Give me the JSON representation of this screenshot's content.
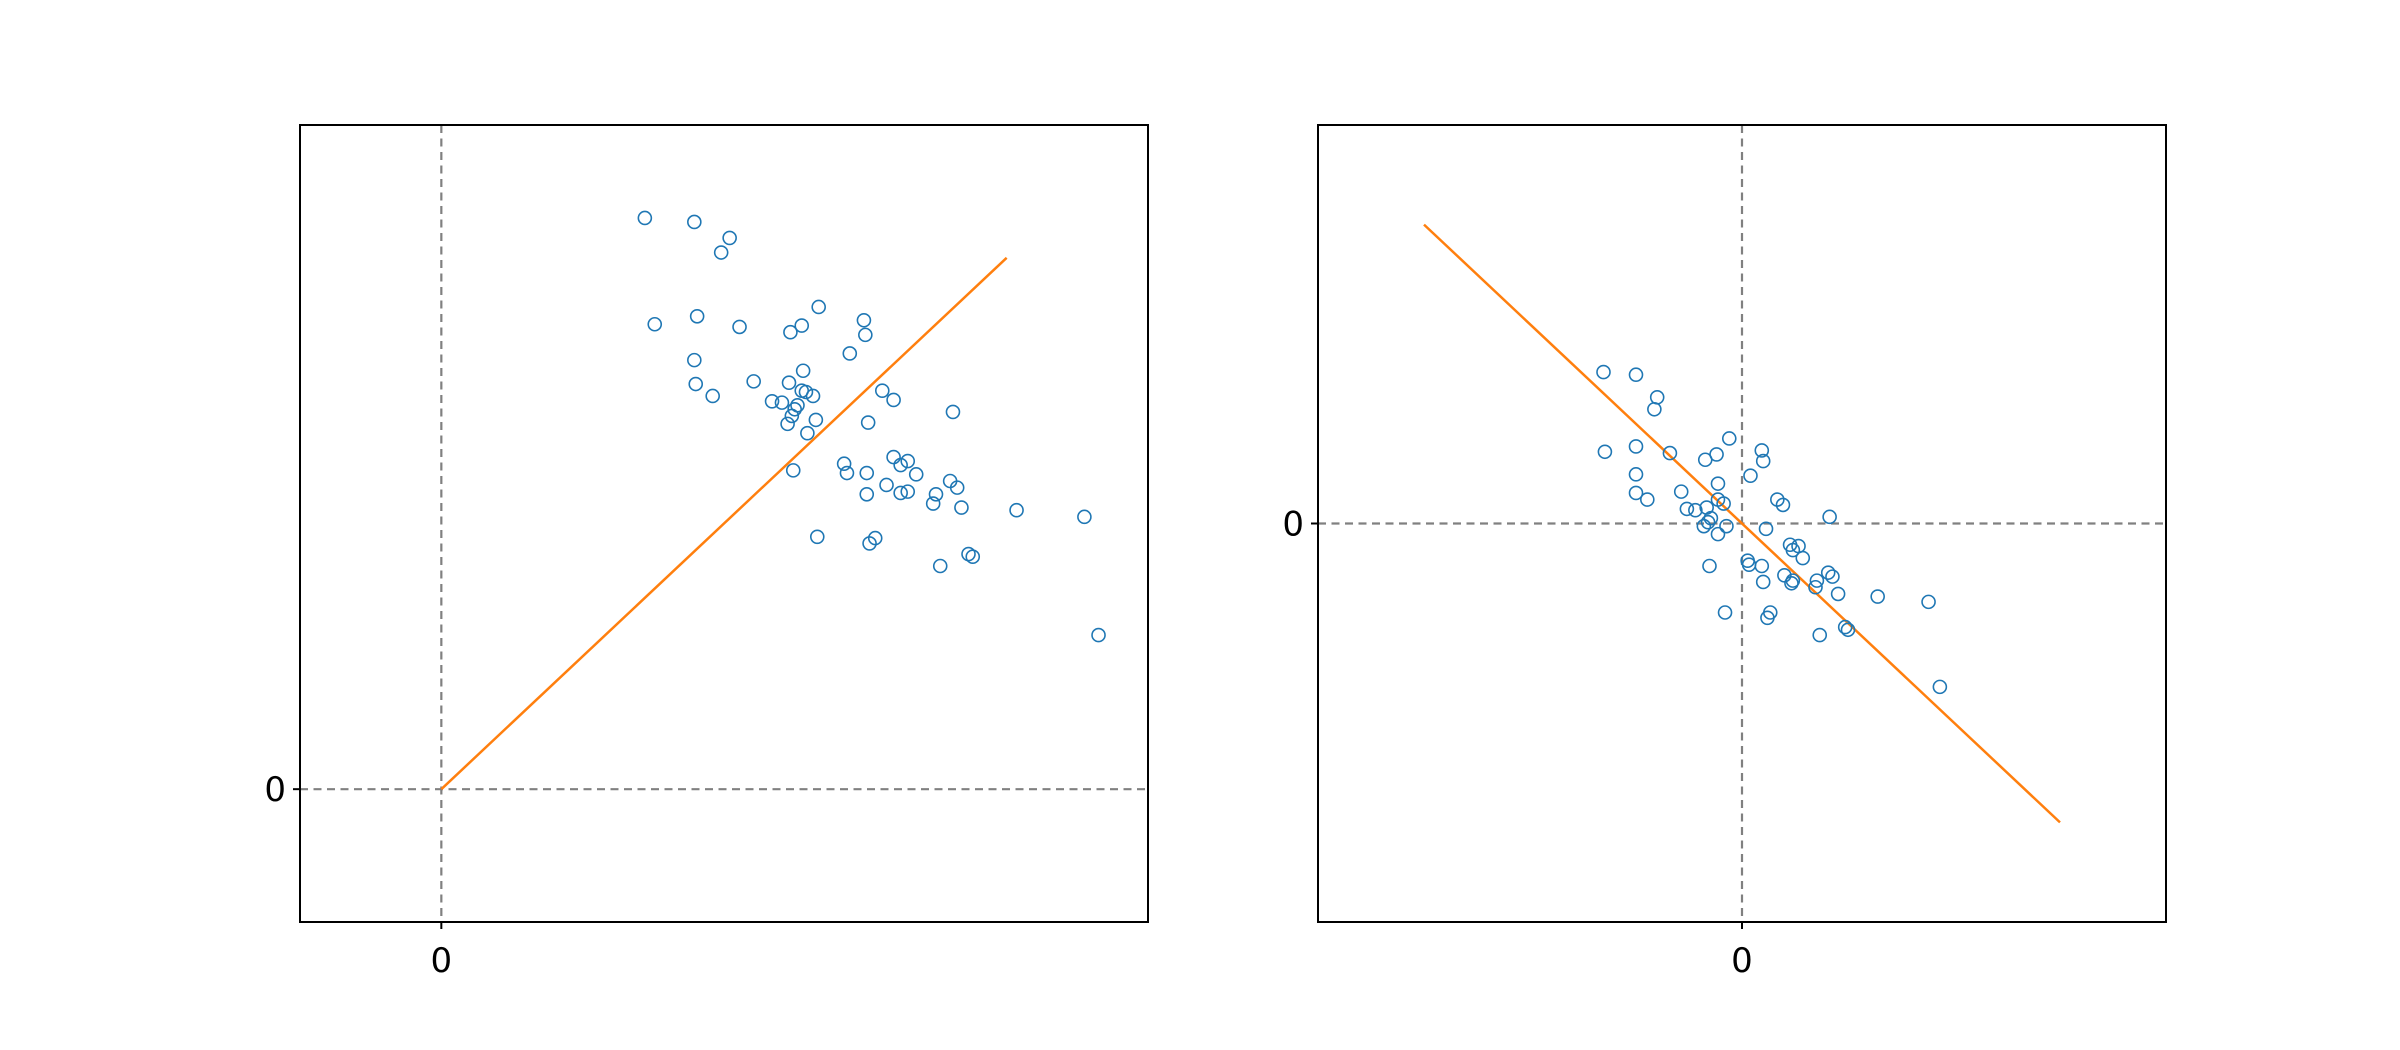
{
  "figure": {
    "background": "#ffffff",
    "panels": 2
  },
  "chart_data": [
    {
      "type": "scatter",
      "title": "",
      "xlabel": "",
      "ylabel": "",
      "xlim": [
        -1.0,
        5.0
      ],
      "ylim": [
        -1.0,
        5.0
      ],
      "xticks": [
        {
          "value": 0,
          "label": "0"
        }
      ],
      "yticks": [
        {
          "value": 0,
          "label": "0"
        }
      ],
      "grid": false,
      "legend": "none",
      "reference_lines": [
        {
          "orientation": "vertical",
          "value": 0,
          "style": "dashed",
          "color": "#808080"
        },
        {
          "orientation": "horizontal",
          "value": 0,
          "style": "dashed",
          "color": "#808080"
        }
      ],
      "fit_line": {
        "color": "#ff7f0e",
        "x": [
          0.0,
          4.0
        ],
        "y": [
          0.0,
          4.0
        ]
      },
      "series": [
        {
          "marker": "open-circle",
          "color": "#1f77b4",
          "points": [
            [
              1.44,
              4.3
            ],
            [
              1.79,
              4.27
            ],
            [
              1.98,
              4.04
            ],
            [
              2.04,
              4.15
            ],
            [
              1.51,
              3.5
            ],
            [
              1.81,
              3.56
            ],
            [
              2.11,
              3.48
            ],
            [
              1.79,
              3.23
            ],
            [
              1.8,
              3.05
            ],
            [
              1.92,
              2.96
            ],
            [
              2.47,
              3.44
            ],
            [
              2.55,
              3.49
            ],
            [
              2.67,
              3.63
            ],
            [
              2.99,
              3.53
            ],
            [
              3.0,
              3.42
            ],
            [
              2.89,
              3.28
            ],
            [
              2.21,
              3.07
            ],
            [
              2.46,
              3.06
            ],
            [
              2.56,
              3.15
            ],
            [
              2.55,
              3.0
            ],
            [
              2.58,
              2.99
            ],
            [
              2.63,
              2.96
            ],
            [
              2.34,
              2.92
            ],
            [
              2.41,
              2.91
            ],
            [
              2.5,
              2.86
            ],
            [
              2.52,
              2.89
            ],
            [
              2.48,
              2.81
            ],
            [
              2.45,
              2.75
            ],
            [
              2.65,
              2.78
            ],
            [
              2.59,
              2.68
            ],
            [
              3.12,
              3.0
            ],
            [
              3.2,
              2.93
            ],
            [
              3.62,
              2.84
            ],
            [
              3.02,
              2.76
            ],
            [
              3.2,
              2.5
            ],
            [
              3.25,
              2.44
            ],
            [
              3.3,
              2.47
            ],
            [
              3.36,
              2.37
            ],
            [
              2.49,
              2.4
            ],
            [
              2.85,
              2.45
            ],
            [
              2.87,
              2.38
            ],
            [
              3.01,
              2.38
            ],
            [
              3.15,
              2.29
            ],
            [
              3.01,
              2.22
            ],
            [
              3.25,
              2.23
            ],
            [
              3.3,
              2.24
            ],
            [
              3.5,
              2.22
            ],
            [
              3.48,
              2.15
            ],
            [
              3.6,
              2.32
            ],
            [
              3.65,
              2.27
            ],
            [
              3.68,
              2.12
            ],
            [
              4.07,
              2.1
            ],
            [
              3.53,
              1.68
            ],
            [
              3.73,
              1.77
            ],
            [
              3.76,
              1.75
            ],
            [
              2.66,
              1.9
            ],
            [
              3.07,
              1.89
            ],
            [
              3.03,
              1.85
            ],
            [
              4.55,
              2.05
            ],
            [
              4.65,
              1.16
            ]
          ]
        }
      ]
    },
    {
      "type": "scatter",
      "title": "",
      "xlabel": "",
      "ylabel": "",
      "xlim": [
        -3.0,
        3.0
      ],
      "ylim": [
        -3.0,
        3.0
      ],
      "xticks": [
        {
          "value": 0,
          "label": "0"
        }
      ],
      "yticks": [
        {
          "value": 0,
          "label": "0"
        }
      ],
      "grid": false,
      "legend": "none",
      "reference_lines": [
        {
          "orientation": "vertical",
          "value": 0,
          "style": "dashed",
          "color": "#808080"
        },
        {
          "orientation": "horizontal",
          "value": 0,
          "style": "dashed",
          "color": "#808080"
        }
      ],
      "fit_line": {
        "color": "#ff7f0e",
        "x": [
          -2.25,
          2.25
        ],
        "y": [
          2.25,
          -2.25
        ]
      },
      "series": [
        {
          "marker": "open-circle",
          "color": "#1f77b4",
          "points": [
            [
              -0.98,
              1.14
            ],
            [
              -0.75,
              1.12
            ],
            [
              -0.6,
              0.95
            ],
            [
              -0.62,
              0.86
            ],
            [
              -0.97,
              0.54
            ],
            [
              -0.75,
              0.58
            ],
            [
              -0.51,
              0.53
            ],
            [
              -0.26,
              0.48
            ],
            [
              -0.18,
              0.52
            ],
            [
              -0.09,
              0.64
            ],
            [
              0.14,
              0.55
            ],
            [
              0.15,
              0.47
            ],
            [
              0.06,
              0.36
            ],
            [
              -0.75,
              0.37
            ],
            [
              -0.75,
              0.23
            ],
            [
              -0.67,
              0.18
            ],
            [
              -0.43,
              0.24
            ],
            [
              -0.17,
              0.3
            ],
            [
              -0.17,
              0.18
            ],
            [
              -0.13,
              0.15
            ],
            [
              -0.39,
              0.11
            ],
            [
              -0.33,
              0.1
            ],
            [
              -0.25,
              0.12
            ],
            [
              -0.22,
              0.04
            ],
            [
              -0.24,
              0.01
            ],
            [
              -0.27,
              -0.02
            ],
            [
              -0.17,
              -0.08
            ],
            [
              -0.11,
              -0.02
            ],
            [
              0.25,
              0.18
            ],
            [
              0.29,
              0.14
            ],
            [
              0.62,
              0.05
            ],
            [
              0.17,
              -0.04
            ],
            [
              0.4,
              -0.17
            ],
            [
              0.34,
              -0.16
            ],
            [
              0.36,
              -0.2
            ],
            [
              0.43,
              -0.26
            ],
            [
              0.04,
              -0.28
            ],
            [
              0.05,
              -0.31
            ],
            [
              0.14,
              -0.32
            ],
            [
              0.3,
              -0.39
            ],
            [
              0.35,
              -0.45
            ],
            [
              0.36,
              -0.43
            ],
            [
              0.53,
              -0.43
            ],
            [
              0.61,
              -0.37
            ],
            [
              0.64,
              -0.4
            ],
            [
              0.15,
              -0.44
            ],
            [
              0.52,
              -0.48
            ],
            [
              0.68,
              -0.53
            ],
            [
              0.96,
              -0.55
            ],
            [
              1.32,
              -0.59
            ],
            [
              -0.23,
              -0.32
            ],
            [
              -0.12,
              -0.67
            ],
            [
              0.18,
              -0.71
            ],
            [
              0.2,
              -0.67
            ],
            [
              0.55,
              -0.84
            ],
            [
              0.73,
              -0.78
            ],
            [
              0.75,
              -0.8
            ],
            [
              1.4,
              -1.23
            ]
          ]
        }
      ]
    }
  ]
}
